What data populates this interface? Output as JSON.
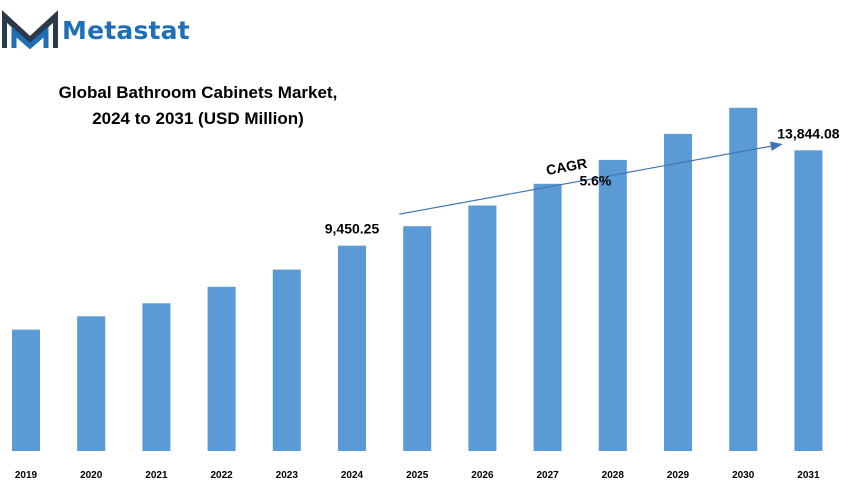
{
  "brand": {
    "name": "Metastat",
    "logo_icon": "metastat-m-logo-icon",
    "colors": {
      "logo_blue": "#1f6fb8",
      "logo_dark": "#2b3a4a"
    }
  },
  "chart_data": {
    "type": "bar",
    "title_lines": [
      "Global Bathroom Cabinets Market,",
      "2024 to 2031 (USD Million)"
    ],
    "categories": [
      "2019",
      "2020",
      "2021",
      "2022",
      "2023",
      "2024",
      "2025",
      "2026",
      "2027",
      "2028",
      "2029",
      "2030",
      "2031"
    ],
    "series": [
      {
        "values": [
          5590,
          6200,
          6800,
          7560,
          8350,
          9450.25,
          10350,
          11300,
          12300,
          13400,
          14600,
          15800,
          13844.08
        ],
        "color": "#5b9bd5"
      }
    ],
    "data_labels": [
      {
        "category": "2024",
        "text": "9,450.25"
      },
      {
        "category": "2031",
        "text": "13,844.08"
      }
    ],
    "annotation": {
      "label": "CAGR",
      "value": "5.6%",
      "from": "2025",
      "to": "2031"
    },
    "ylim": [
      0,
      18000
    ],
    "grid": false,
    "legend": "none",
    "xlabel": "",
    "ylabel": ""
  }
}
